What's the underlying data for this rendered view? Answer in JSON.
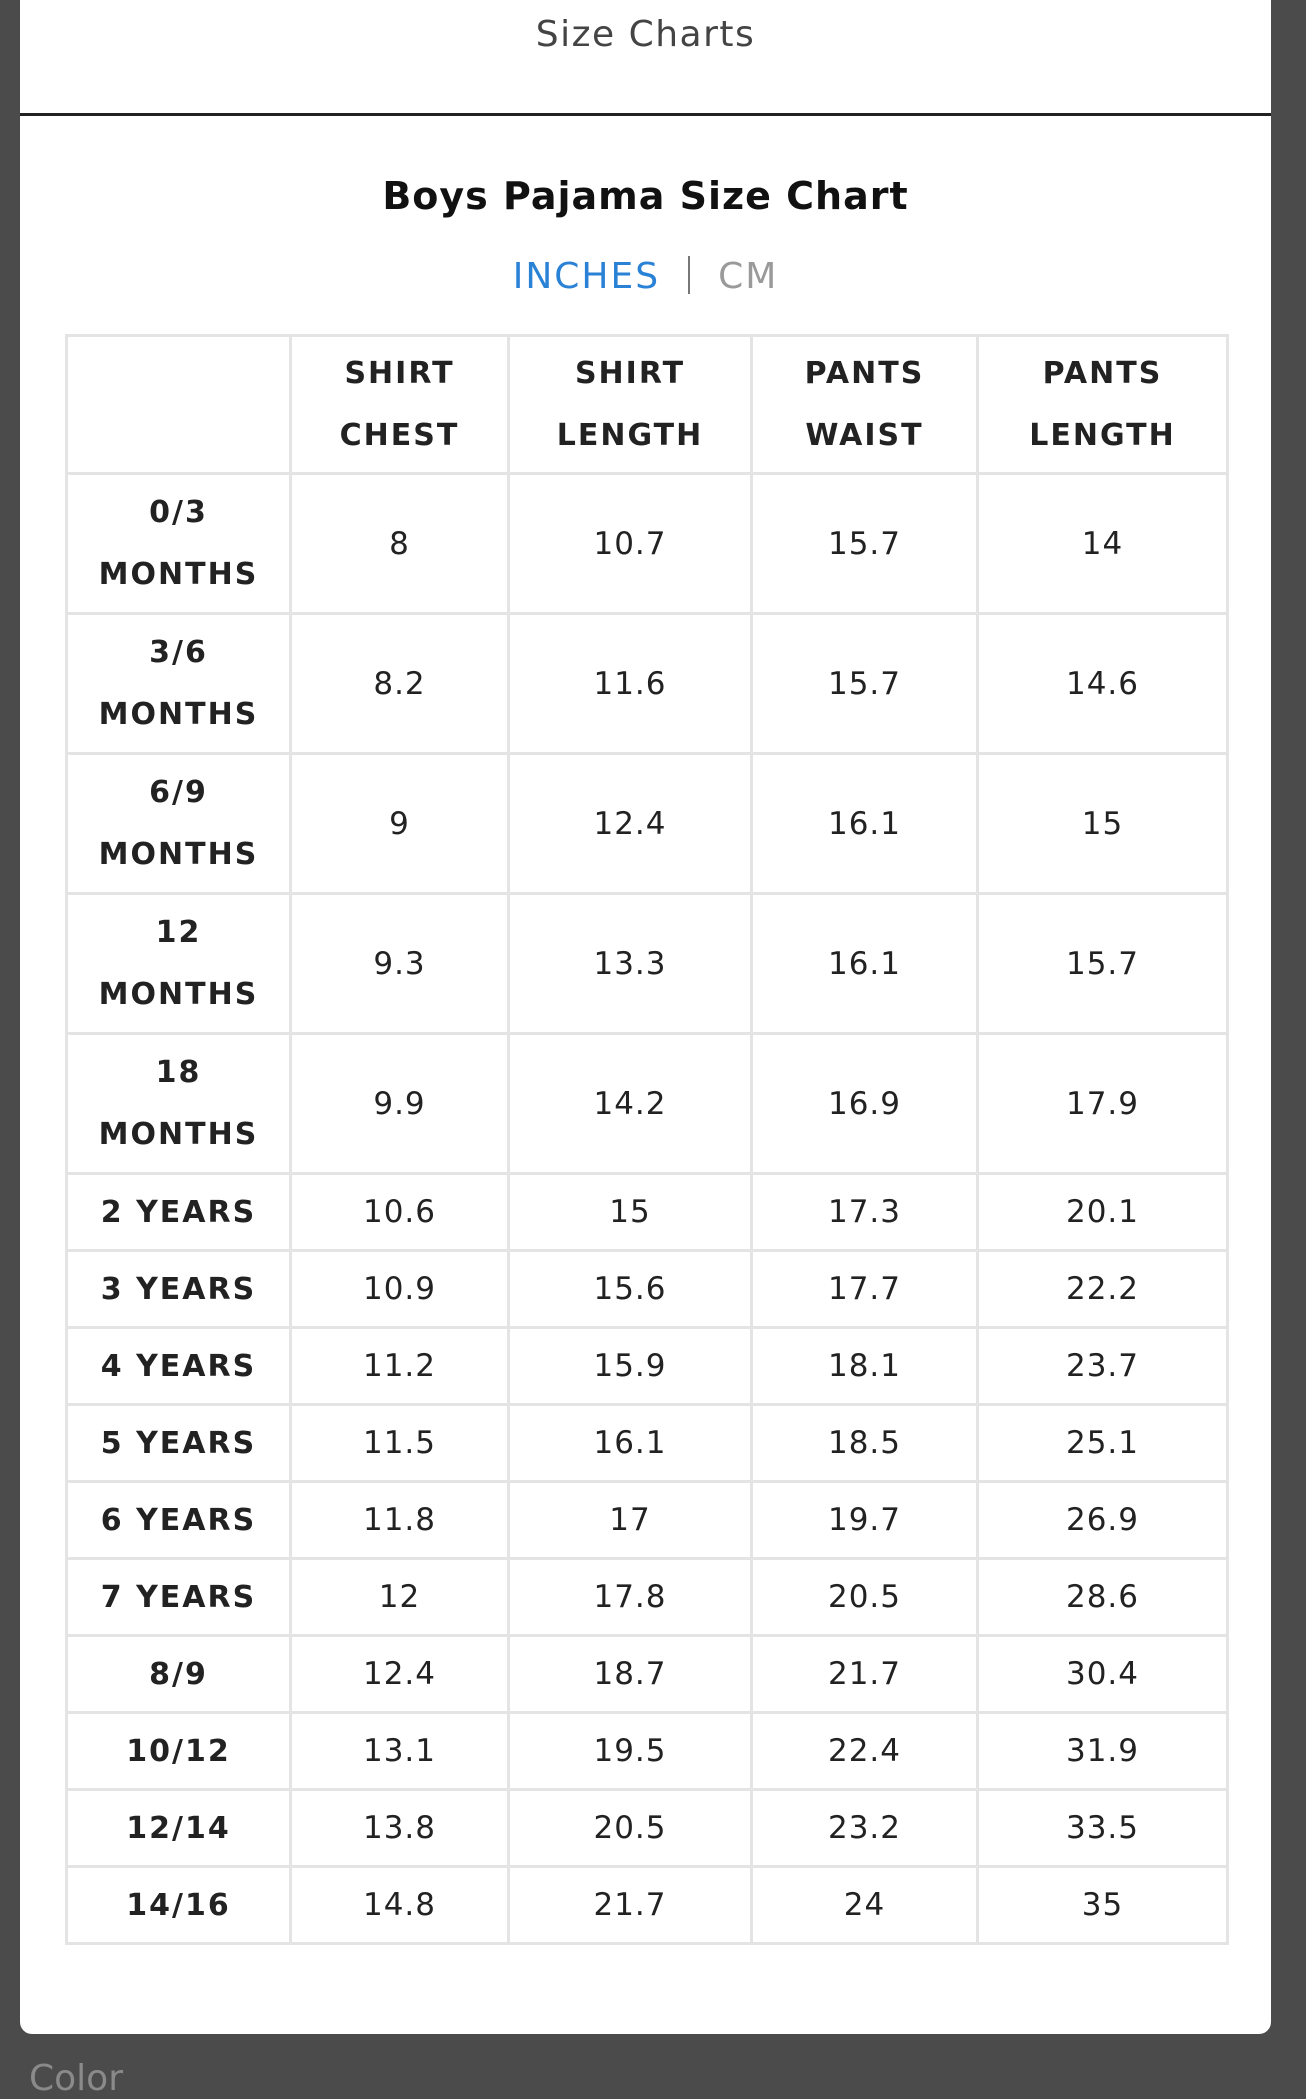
{
  "header": {
    "title": "Size Charts"
  },
  "size_chart": {
    "title": "Boys Pajama Size Chart",
    "units": [
      "INCHES",
      "CM"
    ],
    "table": {
      "columns": [
        "SHIRT CHEST",
        "SHIRT LENGTH",
        "PANTS WAIST",
        "PANTS LENGTH"
      ],
      "rows": [
        [
          "0/3 MONTHS",
          "8",
          "10.7",
          "15.7",
          "14"
        ],
        [
          "3/6 MONTHS",
          "8.2",
          "11.6",
          "15.7",
          "14.6"
        ],
        [
          "6/9 MONTHS",
          "9",
          "12.4",
          "16.1",
          "15"
        ],
        [
          "12 MONTHS",
          "9.3",
          "13.3",
          "16.1",
          "15.7"
        ],
        [
          "18 MONTHS",
          "9.9",
          "14.2",
          "16.9",
          "17.9"
        ],
        [
          "2 YEARS",
          "10.6",
          "15",
          "17.3",
          "20.1"
        ],
        [
          "3 YEARS",
          "10.9",
          "15.6",
          "17.7",
          "22.2"
        ],
        [
          "4 YEARS",
          "11.2",
          "15.9",
          "18.1",
          "23.7"
        ],
        [
          "5 YEARS",
          "11.5",
          "16.1",
          "18.5",
          "25.1"
        ],
        [
          "6 YEARS",
          "11.8",
          "17",
          "19.7",
          "26.9"
        ],
        [
          "7 YEARS",
          "12",
          "17.8",
          "20.5",
          "28.6"
        ],
        [
          "8/9",
          "12.4",
          "18.7",
          "21.7",
          "30.4"
        ],
        [
          "10/12",
          "13.1",
          "19.5",
          "22.4",
          "31.9"
        ],
        [
          "12/14",
          "13.8",
          "20.5",
          "23.2",
          "33.5"
        ],
        [
          "14/16",
          "14.8",
          "21.7",
          "24",
          "35"
        ]
      ]
    }
  },
  "footer": {
    "label": "Color"
  }
}
